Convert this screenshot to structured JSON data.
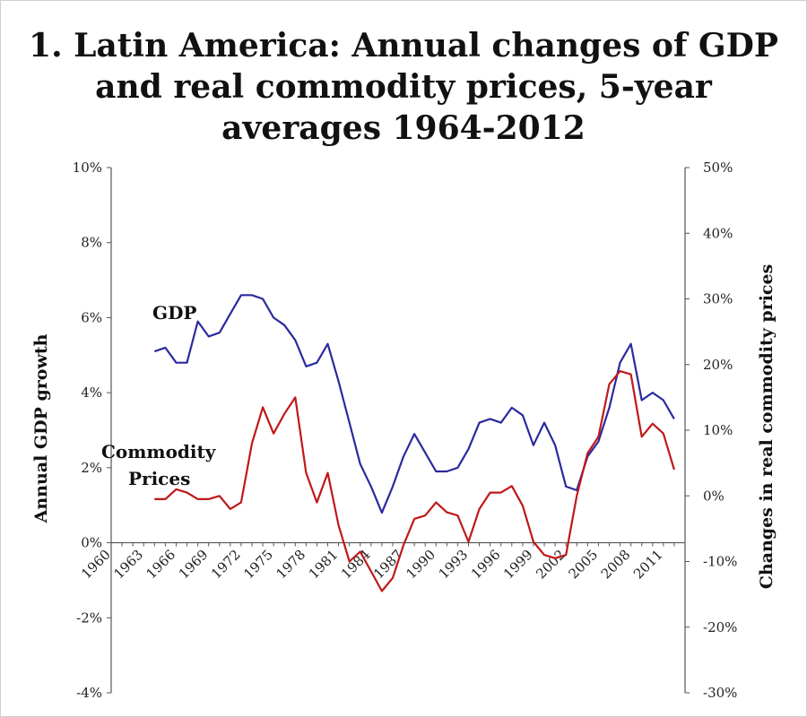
{
  "chart_data": {
    "type": "line",
    "title": [
      "1. Latin America: Annual changes of GDP",
      "and real commodity prices, 5-year",
      "averages 1964-2012"
    ],
    "ylabel_left": "Annual GDP growth",
    "ylabel_right": "Changes in real commodity prices",
    "ylim_left": [
      -4,
      10
    ],
    "ylim_right": [
      -30,
      50
    ],
    "yticks_left": [
      "10%",
      "8%",
      "6%",
      "4%",
      "2%",
      "0%",
      "-2%",
      "-4%"
    ],
    "yticks_right": [
      "50%",
      "40%",
      "30%",
      "20%",
      "10%",
      "0%",
      "-10%",
      "-20%",
      "-30%"
    ],
    "xlim": [
      1960,
      2013
    ],
    "xticks": [
      "1960",
      "1963",
      "1966",
      "1969",
      "1972",
      "1975",
      "1978",
      "1981",
      "1984",
      "1987",
      "1990",
      "1993",
      "1996",
      "1999",
      "2002",
      "2005",
      "2008",
      "2011"
    ],
    "grid": false,
    "colors": {
      "gdp": "#2a2a9e",
      "commodity": "#c01818",
      "axis": "#555555"
    },
    "series_labels": {
      "gdp": "GDP",
      "commodity": [
        "Commodity",
        "Prices"
      ]
    },
    "series": [
      {
        "name": "GDP",
        "axis": "left",
        "x": [
          1964,
          1965,
          1966,
          1967,
          1968,
          1969,
          1970,
          1971,
          1972,
          1973,
          1974,
          1975,
          1976,
          1977,
          1978,
          1979,
          1980,
          1981,
          1982,
          1983,
          1984,
          1985,
          1986,
          1987,
          1988,
          1989,
          1990,
          1991,
          1992,
          1993,
          1994,
          1995,
          1996,
          1997,
          1998,
          1999,
          2000,
          2001,
          2002,
          2003,
          2004,
          2005,
          2006,
          2007,
          2008,
          2009,
          2010,
          2011,
          2012
        ],
        "values": [
          5.1,
          5.2,
          4.8,
          4.8,
          5.9,
          5.5,
          5.6,
          6.1,
          6.6,
          6.6,
          6.5,
          6.0,
          5.8,
          5.4,
          4.7,
          4.8,
          5.3,
          4.3,
          3.2,
          2.1,
          1.5,
          0.8,
          1.5,
          2.3,
          2.9,
          2.4,
          1.9,
          1.9,
          2.0,
          2.5,
          3.2,
          3.3,
          3.2,
          3.6,
          3.4,
          2.6,
          3.2,
          2.6,
          1.5,
          1.4,
          2.3,
          2.7,
          3.6,
          4.8,
          5.3,
          3.8,
          4.0,
          3.8,
          3.3
        ]
      },
      {
        "name": "Commodity Prices",
        "axis": "right",
        "x": [
          1964,
          1965,
          1966,
          1967,
          1968,
          1969,
          1970,
          1971,
          1972,
          1973,
          1974,
          1975,
          1976,
          1977,
          1978,
          1979,
          1980,
          1981,
          1982,
          1983,
          1984,
          1985,
          1986,
          1987,
          1988,
          1989,
          1990,
          1991,
          1992,
          1993,
          1994,
          1995,
          1996,
          1997,
          1998,
          1999,
          2000,
          2001,
          2002,
          2003,
          2004,
          2005,
          2006,
          2007,
          2008,
          2009,
          2010,
          2011,
          2012
        ],
        "values": [
          -0.5,
          -0.5,
          1.0,
          0.5,
          -0.5,
          -0.5,
          0.0,
          -2.0,
          -1.0,
          8.0,
          13.5,
          9.5,
          12.5,
          15.0,
          3.5,
          -1.0,
          3.5,
          -4.5,
          -10.0,
          -8.5,
          -11.5,
          -14.5,
          -12.5,
          -7.5,
          -3.5,
          -3.0,
          -1.0,
          -2.5,
          -3.0,
          -7.0,
          -2.0,
          0.5,
          0.5,
          1.5,
          -1.5,
          -7.0,
          -9.0,
          -9.5,
          -9.0,
          0.0,
          6.5,
          9.0,
          17.0,
          19.0,
          18.5,
          9.0,
          11.0,
          9.5,
          4.0
        ]
      }
    ]
  }
}
